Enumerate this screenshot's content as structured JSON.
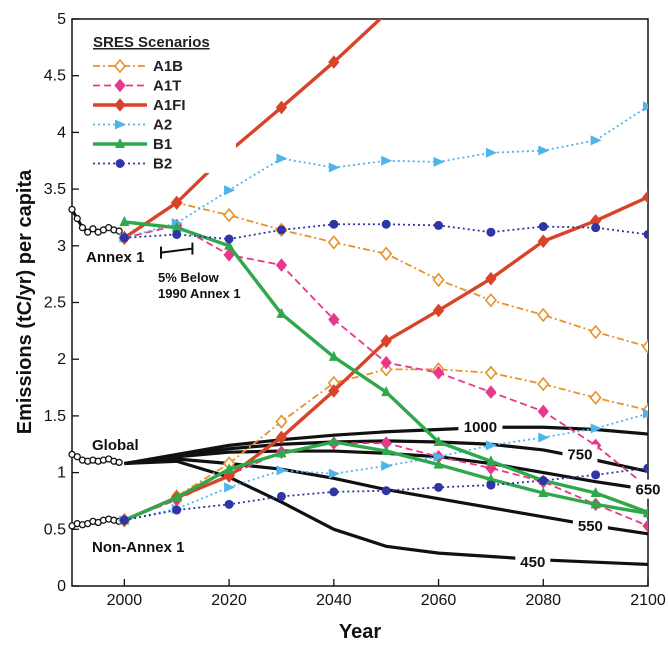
{
  "chart_data": {
    "type": "line",
    "xlabel": "Year",
    "ylabel": "Emissions (tC/yr) per capita",
    "xlim": [
      1990,
      2100
    ],
    "ylim": [
      0,
      5
    ],
    "xticks": [
      2000,
      2020,
      2040,
      2060,
      2080,
      2100
    ],
    "yticks": [
      0,
      0.5,
      1,
      1.5,
      2,
      2.5,
      3,
      3.5,
      4,
      4.5,
      5
    ],
    "grid": false,
    "legend": {
      "title": "SRES Scenarios",
      "placement": "top-left"
    },
    "series": [
      {
        "name": "A1B",
        "color": "#E8912D",
        "dash": "dashdot",
        "marker": "open-diamond",
        "group": "Annex 1",
        "x": [
          2000,
          2010,
          2020,
          2030,
          2040,
          2050,
          2060,
          2070,
          2080,
          2090,
          2100
        ],
        "y": [
          3.07,
          3.38,
          3.27,
          3.14,
          3.03,
          2.93,
          2.7,
          2.52,
          2.39,
          2.24,
          2.11
        ]
      },
      {
        "name": "A1B",
        "color": "#E8912D",
        "dash": "dashdot",
        "marker": "open-diamond",
        "group": "Non-Annex 1",
        "x": [
          2000,
          2010,
          2020,
          2030,
          2040,
          2050,
          2060,
          2070,
          2080,
          2090,
          2100
        ],
        "y": [
          0.58,
          0.79,
          1.08,
          1.45,
          1.79,
          1.91,
          1.91,
          1.88,
          1.78,
          1.66,
          1.55
        ]
      },
      {
        "name": "A1T",
        "color": "#E8388C",
        "dash": "dashed",
        "marker": "diamond",
        "group": "Annex 1",
        "x": [
          2000,
          2010,
          2020,
          2030,
          2040,
          2050,
          2060,
          2070,
          2080,
          2090,
          2100
        ],
        "y": [
          3.07,
          3.18,
          2.92,
          2.83,
          2.35,
          1.97,
          1.88,
          1.71,
          1.54,
          1.24,
          0.87
        ]
      },
      {
        "name": "A1T",
        "color": "#E8388C",
        "dash": "dashed",
        "marker": "diamond",
        "group": "Non-Annex 1",
        "x": [
          2000,
          2010,
          2020,
          2030,
          2040,
          2050,
          2060,
          2070,
          2080,
          2090,
          2100
        ],
        "y": [
          0.58,
          0.76,
          0.98,
          1.18,
          1.26,
          1.26,
          1.14,
          1.04,
          0.92,
          0.72,
          0.53
        ]
      },
      {
        "name": "A1FI",
        "color": "#D8432A",
        "dash": "solid",
        "marker": "diamond",
        "group": "Annex 1",
        "x": [
          2000,
          2010,
          2020,
          2030,
          2040,
          2050
        ],
        "y": [
          3.07,
          3.38,
          3.83,
          4.22,
          4.62,
          5.05
        ]
      },
      {
        "name": "A1FI",
        "color": "#D8432A",
        "dash": "solid",
        "marker": "diamond",
        "group": "Non-Annex 1",
        "x": [
          2000,
          2010,
          2020,
          2030,
          2040,
          2050,
          2060,
          2070,
          2080,
          2090,
          2100
        ],
        "y": [
          0.58,
          0.78,
          0.97,
          1.31,
          1.72,
          2.16,
          2.43,
          2.71,
          3.04,
          3.22,
          3.43
        ]
      },
      {
        "name": "A2",
        "color": "#4FB4E8",
        "dash": "dotted",
        "marker": "triangle-right",
        "group": "Annex 1",
        "x": [
          2000,
          2010,
          2020,
          2030,
          2040,
          2050,
          2060,
          2070,
          2080,
          2090,
          2100
        ],
        "y": [
          3.07,
          3.2,
          3.49,
          3.77,
          3.69,
          3.75,
          3.74,
          3.82,
          3.84,
          3.93,
          4.23
        ]
      },
      {
        "name": "A2",
        "color": "#4FB4E8",
        "dash": "dotted",
        "marker": "triangle-right",
        "group": "Non-Annex 1",
        "x": [
          2000,
          2010,
          2020,
          2030,
          2040,
          2050,
          2060,
          2070,
          2080,
          2090,
          2100
        ],
        "y": [
          0.58,
          0.68,
          0.87,
          1.02,
          0.99,
          1.06,
          1.14,
          1.24,
          1.31,
          1.39,
          1.52
        ]
      },
      {
        "name": "B1",
        "color": "#2EA84A",
        "dash": "solid",
        "marker": "triangle-up",
        "group": "Annex 1",
        "x": [
          2000,
          2010,
          2020,
          2030,
          2040,
          2050,
          2060,
          2070,
          2080,
          2090,
          2100
        ],
        "y": [
          3.21,
          3.16,
          3.0,
          2.4,
          2.02,
          1.71,
          1.27,
          1.1,
          0.93,
          0.82,
          0.65
        ]
      },
      {
        "name": "B1",
        "color": "#2EA84A",
        "dash": "solid",
        "marker": "triangle-up",
        "group": "Non-Annex 1",
        "x": [
          2000,
          2010,
          2020,
          2030,
          2040,
          2050,
          2060,
          2070,
          2080,
          2090,
          2100
        ],
        "y": [
          0.58,
          0.78,
          1.03,
          1.17,
          1.27,
          1.19,
          1.07,
          0.94,
          0.82,
          0.72,
          0.64
        ]
      },
      {
        "name": "B2",
        "color": "#2E35A5",
        "dash": "dotted",
        "marker": "circle",
        "group": "Annex 1",
        "x": [
          2000,
          2010,
          2020,
          2030,
          2040,
          2050,
          2060,
          2070,
          2080,
          2090,
          2100
        ],
        "y": [
          3.07,
          3.1,
          3.06,
          3.14,
          3.19,
          3.19,
          3.18,
          3.12,
          3.17,
          3.16,
          3.1
        ]
      },
      {
        "name": "B2",
        "color": "#2E35A5",
        "dash": "dotted",
        "marker": "circle",
        "group": "Non-Annex 1",
        "x": [
          2000,
          2010,
          2020,
          2030,
          2040,
          2050,
          2060,
          2070,
          2080,
          2090,
          2100
        ],
        "y": [
          0.58,
          0.67,
          0.72,
          0.79,
          0.83,
          0.84,
          0.87,
          0.89,
          0.93,
          0.98,
          1.04
        ]
      }
    ],
    "stabilization_paths": [
      {
        "label": "1000",
        "x": [
          2000,
          2010,
          2020,
          2030,
          2040,
          2050,
          2060,
          2070,
          2080,
          2090,
          2100
        ],
        "y": [
          1.08,
          1.16,
          1.24,
          1.29,
          1.33,
          1.36,
          1.38,
          1.4,
          1.4,
          1.38,
          1.34
        ]
      },
      {
        "label": "750",
        "x": [
          2000,
          2010,
          2020,
          2030,
          2040,
          2050,
          2060,
          2070,
          2080,
          2090,
          2100
        ],
        "y": [
          1.08,
          1.15,
          1.21,
          1.25,
          1.27,
          1.28,
          1.27,
          1.25,
          1.2,
          1.11,
          1.01
        ]
      },
      {
        "label": "650",
        "x": [
          2000,
          2010,
          2020,
          2030,
          2040,
          2050,
          2060,
          2070,
          2080,
          2090,
          2100
        ],
        "y": [
          1.08,
          1.14,
          1.18,
          1.19,
          1.19,
          1.17,
          1.14,
          1.08,
          1.0,
          0.92,
          0.85
        ]
      },
      {
        "label": "550",
        "x": [
          2000,
          2010,
          2020,
          2030,
          2040,
          2050,
          2060,
          2070,
          2080,
          2090,
          2100
        ],
        "y": [
          1.08,
          1.12,
          1.08,
          1.03,
          0.95,
          0.85,
          0.77,
          0.69,
          0.61,
          0.53,
          0.46
        ]
      },
      {
        "label": "450",
        "x": [
          2000,
          2010,
          2020,
          2030,
          2040,
          2050,
          2060,
          2070,
          2080,
          2090,
          2100
        ],
        "y": [
          1.08,
          1.1,
          0.96,
          0.74,
          0.5,
          0.35,
          0.29,
          0.26,
          0.23,
          0.21,
          0.19
        ]
      }
    ],
    "historical": [
      {
        "group": "Annex 1",
        "x": [
          1990,
          1991,
          1992,
          1993,
          1994,
          1995,
          1996,
          1997,
          1998,
          1999
        ],
        "y": [
          3.32,
          3.24,
          3.16,
          3.12,
          3.15,
          3.12,
          3.14,
          3.16,
          3.14,
          3.13
        ]
      },
      {
        "group": "Global",
        "x": [
          1990,
          1991,
          1992,
          1993,
          1994,
          1995,
          1996,
          1997,
          1998,
          1999
        ],
        "y": [
          1.16,
          1.14,
          1.11,
          1.1,
          1.11,
          1.1,
          1.11,
          1.12,
          1.1,
          1.09
        ]
      },
      {
        "group": "Non-Annex 1",
        "x": [
          1990,
          1991,
          1992,
          1993,
          1994,
          1995,
          1996,
          1997,
          1998,
          1999
        ],
        "y": [
          0.53,
          0.55,
          0.54,
          0.55,
          0.57,
          0.56,
          0.58,
          0.59,
          0.58,
          0.57
        ]
      }
    ],
    "annotations": {
      "annex1": "Annex 1",
      "global": "Global",
      "non_annex1": "Non-Annex 1",
      "target_line1": "5% Below",
      "target_line2": "1990 Annex 1",
      "target": {
        "x": [
          2007,
          2013
        ],
        "y": 2.94
      }
    }
  }
}
